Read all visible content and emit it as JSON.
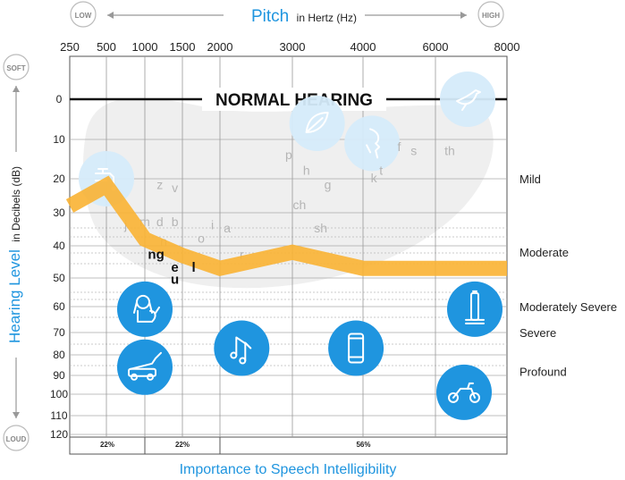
{
  "chart_data": {
    "type": "line",
    "title": "Pitch",
    "title_unit": "in Hertz (Hz)",
    "xlabel_low": "LOW",
    "xlabel_high": "HIGH",
    "ylabel": "Hearing Level",
    "ylabel_unit": "in Decibels (dB)",
    "ylabel_top": "SOFT",
    "ylabel_bottom": "LOUD",
    "bottom_label": "Importance to Speech Intelligibility",
    "x_ticks": [
      "250",
      "500",
      "1000",
      "1500",
      "2000",
      "3000",
      "4000",
      "6000",
      "8000"
    ],
    "y_ticks": [
      0,
      10,
      20,
      30,
      40,
      50,
      60,
      70,
      80,
      90,
      100,
      110,
      120
    ],
    "ylim": [
      -10,
      120
    ],
    "normal_label": "NORMAL HEARING",
    "severity_labels": [
      {
        "label": "Mild",
        "db": 20
      },
      {
        "label": "Moderate",
        "db": 42
      },
      {
        "label": "Moderately Severe",
        "db": 60
      },
      {
        "label": "Severe",
        "db": 70
      },
      {
        "label": "Profound",
        "db": 88
      }
    ],
    "series": [
      {
        "color": "#f9b233",
        "x": [
          "250",
          "500",
          "1000",
          "1500",
          "2000",
          "3000",
          "4000",
          "6000",
          "8000"
        ],
        "values": [
          28,
          22,
          38,
          43,
          47,
          42,
          47,
          47,
          47
        ]
      }
    ],
    "phonemes": [
      {
        "text": "j",
        "hz": 750,
        "db": 35
      },
      {
        "text": "m",
        "hz": 1000,
        "db": 34
      },
      {
        "text": "d",
        "hz": 1200,
        "db": 34
      },
      {
        "text": "b",
        "hz": 1400,
        "db": 34
      },
      {
        "text": "z",
        "hz": 1200,
        "db": 23
      },
      {
        "text": "v",
        "hz": 1400,
        "db": 24
      },
      {
        "text": "n",
        "hz": 1250,
        "db": 40
      },
      {
        "text": "o",
        "hz": 1750,
        "db": 39
      },
      {
        "text": "i",
        "hz": 1900,
        "db": 35
      },
      {
        "text": "a",
        "hz": 2100,
        "db": 36
      },
      {
        "text": "r",
        "hz": 2300,
        "db": 44
      },
      {
        "text": "p",
        "hz": 2950,
        "db": 15
      },
      {
        "text": "h",
        "hz": 3200,
        "db": 19
      },
      {
        "text": "g",
        "hz": 3500,
        "db": 23
      },
      {
        "text": "ch",
        "hz": 3100,
        "db": 29
      },
      {
        "text": "sh",
        "hz": 3400,
        "db": 36
      },
      {
        "text": "f",
        "hz": 5000,
        "db": 13
      },
      {
        "text": "s",
        "hz": 5400,
        "db": 14
      },
      {
        "text": "th",
        "hz": 6400,
        "db": 14
      },
      {
        "text": "k",
        "hz": 4300,
        "db": 21
      },
      {
        "text": "t",
        "hz": 4500,
        "db": 19
      }
    ],
    "phonemes_dark": [
      {
        "text": "ng",
        "hz": 1150,
        "db": 44
      },
      {
        "text": "e",
        "hz": 1400,
        "db": 48
      },
      {
        "text": "l",
        "hz": 1650,
        "db": 48
      },
      {
        "text": "u",
        "hz": 1400,
        "db": 52
      }
    ],
    "normal_icons": [
      {
        "icon": "faucet-icon",
        "hz": 500,
        "db": 20
      },
      {
        "icon": "leaves-icon",
        "hz": 3350,
        "db": 6
      },
      {
        "icon": "whisper-icon",
        "hz": 4250,
        "db": 11
      },
      {
        "icon": "bird-icon",
        "hz": 6900,
        "db": 0
      }
    ],
    "loud_icons": [
      {
        "icon": "dog-icon",
        "hz": 1000,
        "db": 61
      },
      {
        "icon": "lawnmower-icon",
        "hz": 1000,
        "db": 86
      },
      {
        "icon": "music-icon",
        "hz": 2300,
        "db": 77
      },
      {
        "icon": "phone-icon",
        "hz": 3900,
        "db": 77
      },
      {
        "icon": "vacuum-icon",
        "hz": 7100,
        "db": 61
      },
      {
        "icon": "motorcycle-icon",
        "hz": 6800,
        "db": 99
      }
    ],
    "speech_importance": [
      {
        "label": "22%",
        "from_hz": 250,
        "to_hz": 1000
      },
      {
        "label": "22%",
        "from_hz": 1000,
        "to_hz": 2000
      },
      {
        "label": "56%",
        "from_hz": 2000,
        "to_hz": 8000
      }
    ]
  }
}
